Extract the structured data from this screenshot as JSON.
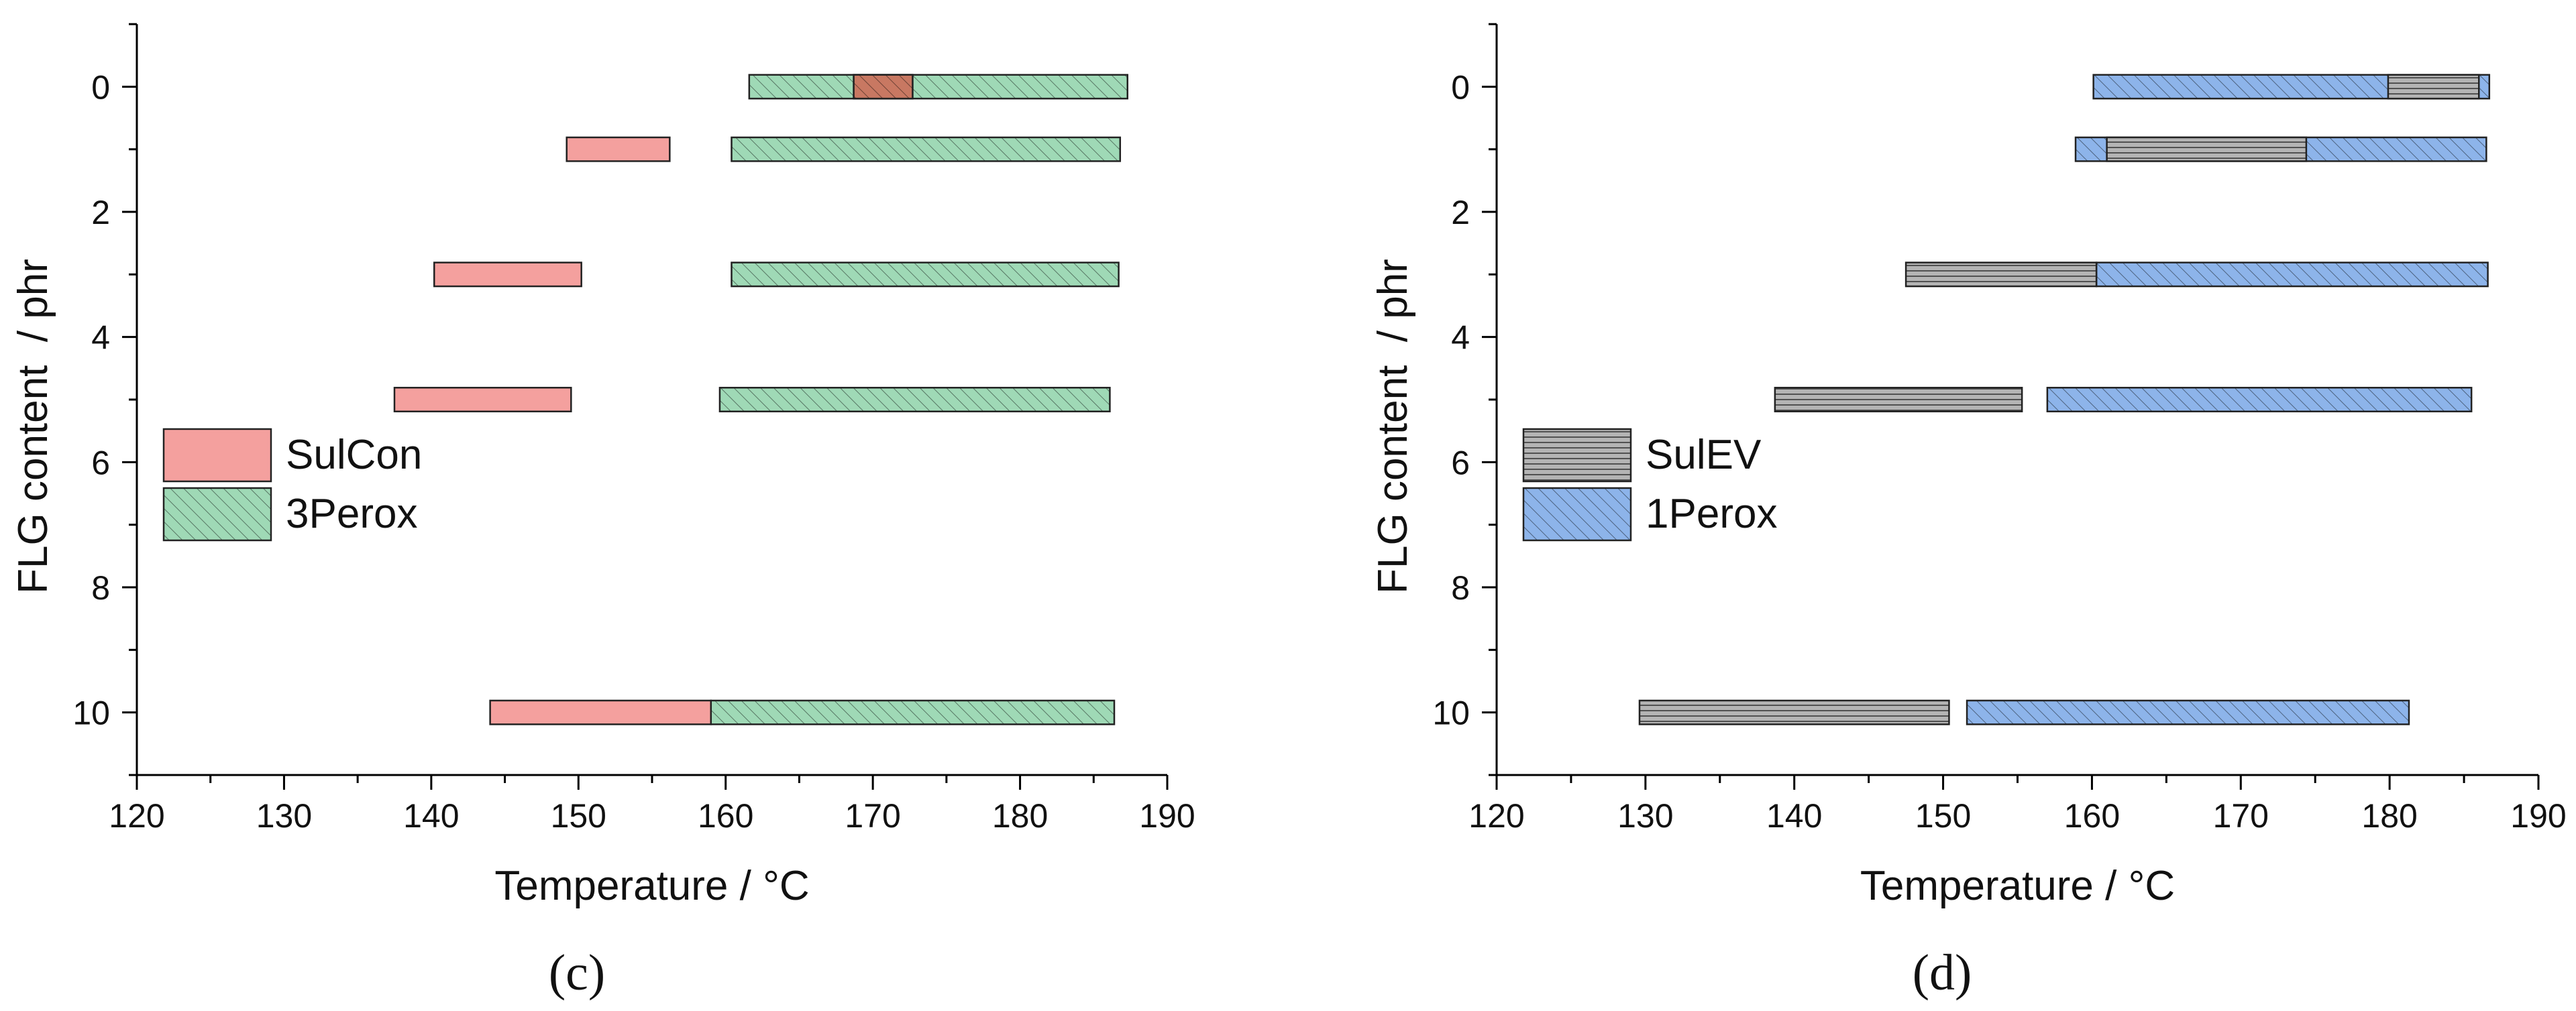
{
  "chart_data": [
    {
      "type": "bar",
      "orientation": "horizontal-range",
      "panel_label": "(c)",
      "xlabel": "Temperature / °C",
      "ylabel": "FLG content  / phr",
      "xlim": [
        120,
        190
      ],
      "ylim": [
        -1,
        11
      ],
      "x_ticks": [
        "120",
        "130",
        "140",
        "150",
        "160",
        "170",
        "180",
        "190"
      ],
      "y_ticks": [
        "0",
        "2",
        "4",
        "6",
        "8",
        "10"
      ],
      "legend_position": "middle-left",
      "series": [
        {
          "name": "SulCon",
          "color": "#f4a09e",
          "pattern": "solid",
          "ranges": [
            {
              "y": 0,
              "start": 168.7,
              "end": 172.7
            },
            {
              "y": 1,
              "start": 149.2,
              "end": 156.2
            },
            {
              "y": 3,
              "start": 140.2,
              "end": 150.2
            },
            {
              "y": 5,
              "start": 137.5,
              "end": 149.5
            },
            {
              "y": 10,
              "start": 144.0,
              "end": 159.0
            }
          ]
        },
        {
          "name": "3Perox",
          "color": "#9fd9b6",
          "pattern": "diagonal",
          "ranges": [
            {
              "y": 0,
              "start": 161.6,
              "end": 187.3
            },
            {
              "y": 1,
              "start": 160.4,
              "end": 186.8
            },
            {
              "y": 3,
              "start": 160.4,
              "end": 186.7
            },
            {
              "y": 5,
              "start": 159.6,
              "end": 186.1
            },
            {
              "y": 10,
              "start": 159.0,
              "end": 186.4
            }
          ]
        }
      ]
    },
    {
      "type": "bar",
      "orientation": "horizontal-range",
      "panel_label": "(d)",
      "xlabel": "Temperature / °C",
      "ylabel": "FLG content  / phr",
      "xlim": [
        120,
        190
      ],
      "ylim": [
        -1,
        11
      ],
      "x_ticks": [
        "120",
        "130",
        "140",
        "150",
        "160",
        "170",
        "180",
        "190"
      ],
      "y_ticks": [
        "0",
        "2",
        "4",
        "6",
        "8",
        "10"
      ],
      "legend_position": "middle-left",
      "series": [
        {
          "name": "SulEV",
          "color": "#b4b4b4",
          "pattern": "horizontal",
          "ranges": [
            {
              "y": 0,
              "start": 179.9,
              "end": 186.0
            },
            {
              "y": 1,
              "start": 161.0,
              "end": 174.4
            },
            {
              "y": 3,
              "start": 147.5,
              "end": 160.3
            },
            {
              "y": 5,
              "start": 138.7,
              "end": 155.3
            },
            {
              "y": 10,
              "start": 129.6,
              "end": 150.4
            }
          ]
        },
        {
          "name": "1Perox",
          "color": "#8db4ea",
          "pattern": "diagonal",
          "ranges": [
            {
              "y": 0,
              "start": 160.1,
              "end": 186.7
            },
            {
              "y": 1,
              "start": 158.9,
              "end": 186.5
            },
            {
              "y": 3,
              "start": 160.3,
              "end": 186.6
            },
            {
              "y": 5,
              "start": 157.0,
              "end": 185.5
            },
            {
              "y": 10,
              "start": 151.6,
              "end": 181.3
            }
          ]
        }
      ]
    }
  ]
}
